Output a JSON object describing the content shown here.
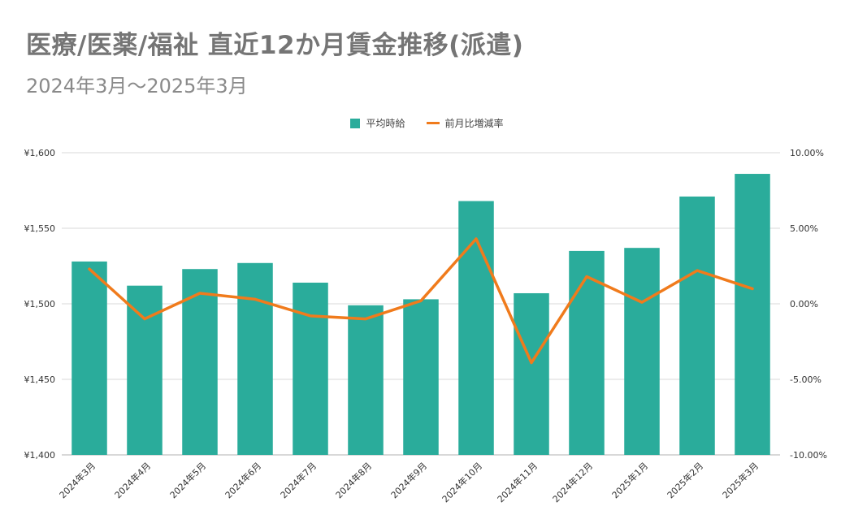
{
  "title": "医療/医薬/福祉 直近12か月賃金推移(派遣)",
  "subtitle": "2024年3月～2025年3月",
  "colors": {
    "bar": "#2aac9b",
    "line": "#f07b1c",
    "grid": "#d9d9d9",
    "axis_text": "#333333"
  },
  "legend": {
    "bar_label": "平均時給",
    "line_label": "前月比増減率"
  },
  "chart_data": {
    "type": "bar",
    "categories": [
      "2024年3月",
      "2024年4月",
      "2024年5月",
      "2024年6月",
      "2024年7月",
      "2024年8月",
      "2024年9月",
      "2024年10月",
      "2024年11月",
      "2024年12月",
      "2025年1月",
      "2025年2月",
      "2025年3月"
    ],
    "series": [
      {
        "name": "平均時給",
        "type": "bar",
        "axis": "left",
        "values": [
          1528,
          1512,
          1523,
          1527,
          1514,
          1499,
          1503,
          1568,
          1507,
          1535,
          1537,
          1571,
          1586
        ]
      },
      {
        "name": "前月比増減率",
        "type": "line",
        "axis": "right",
        "values": [
          2.3,
          -1.0,
          0.7,
          0.3,
          -0.8,
          -1.0,
          0.2,
          4.3,
          -3.9,
          1.8,
          0.1,
          2.2,
          1.0
        ]
      }
    ],
    "y_left": {
      "min": 1400,
      "max": 1600,
      "ticks": [
        "¥1,400",
        "¥1,450",
        "¥1,500",
        "¥1,550",
        "¥1,600"
      ]
    },
    "y_right": {
      "min": -10,
      "max": 10,
      "ticks": [
        "-10.00%",
        "-5.00%",
        "0.00%",
        "5.00%",
        "10.00%"
      ]
    },
    "grid": true,
    "legend_position": "top-center"
  }
}
